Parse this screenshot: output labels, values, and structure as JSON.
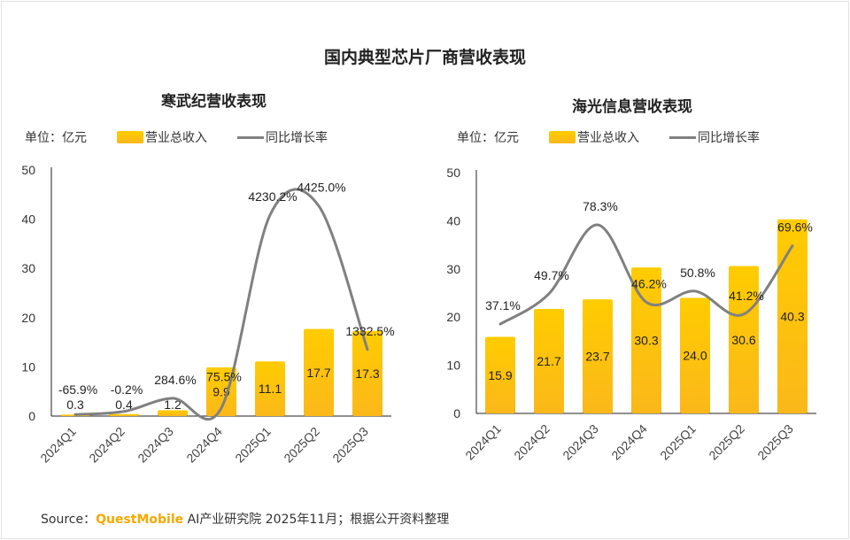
{
  "title": "国内典型芯片厂商营收表现",
  "source": {
    "prefix": "Source：",
    "brand": "QuestMobile",
    "text": " AI产业研究院 2025年11月；根据公开资料整理"
  },
  "colors": {
    "bar_top": "#ffcc00",
    "bar_bottom": "#fbb81a",
    "line": "#808080"
  },
  "chart_data": [
    {
      "type": "bar+line",
      "title": "寒武纪营收表现",
      "unit_label": "单位：亿元",
      "legend": [
        "营业总收入",
        "同比增长率"
      ],
      "legend_placement": "top",
      "categories": [
        "2024Q1",
        "2024Q2",
        "2024Q3",
        "2024Q4",
        "2025Q1",
        "2025Q2",
        "2025Q3"
      ],
      "series": [
        {
          "name": "营业总收入",
          "type": "bar",
          "values": [
            0.3,
            0.4,
            1.2,
            9.9,
            11.1,
            17.7,
            17.3
          ],
          "labels": [
            "0.3",
            "0.4",
            "1.2",
            "9.9",
            "11.1",
            "17.7",
            "17.3"
          ]
        },
        {
          "name": "同比增长率",
          "type": "line",
          "values": [
            -65.9,
            -0.2,
            284.6,
            75.5,
            4230.2,
            4425.0,
            1332.5
          ],
          "labels": [
            "-65.9%",
            "-0.2%",
            "284.6%",
            "75.5%",
            "4230.2%",
            "4425.0%",
            "1332.5%"
          ]
        }
      ],
      "ylim": [
        0,
        50
      ],
      "yticks": [
        "0",
        "10",
        "20",
        "30",
        "40",
        "50"
      ],
      "y2lim": [
        -100,
        5200
      ],
      "grid": false
    },
    {
      "type": "bar+line",
      "title": "海光信息营收表现",
      "unit_label": "单位：亿元",
      "legend": [
        "营业总收入",
        "同比增长率"
      ],
      "legend_placement": "top",
      "categories": [
        "2024Q1",
        "2024Q2",
        "2024Q3",
        "2024Q4",
        "2025Q1",
        "2025Q2",
        "2025Q3"
      ],
      "series": [
        {
          "name": "营业总收入",
          "type": "bar",
          "values": [
            15.9,
            21.7,
            23.7,
            30.3,
            24.0,
            30.6,
            40.3
          ],
          "labels": [
            "15.9",
            "21.7",
            "23.7",
            "30.3",
            "24.0",
            "30.6",
            "40.3"
          ]
        },
        {
          "name": "同比增长率",
          "type": "line",
          "values": [
            37.1,
            49.7,
            78.3,
            46.2,
            50.8,
            41.2,
            69.6
          ],
          "labels": [
            "37.1%",
            "49.7%",
            "78.3%",
            "46.2%",
            "50.8%",
            "41.2%",
            "69.6%"
          ]
        }
      ],
      "ylim": [
        0,
        50
      ],
      "yticks": [
        "0",
        "10",
        "20",
        "30",
        "40",
        "50"
      ],
      "y2lim": [
        0,
        100
      ],
      "grid": false
    }
  ]
}
